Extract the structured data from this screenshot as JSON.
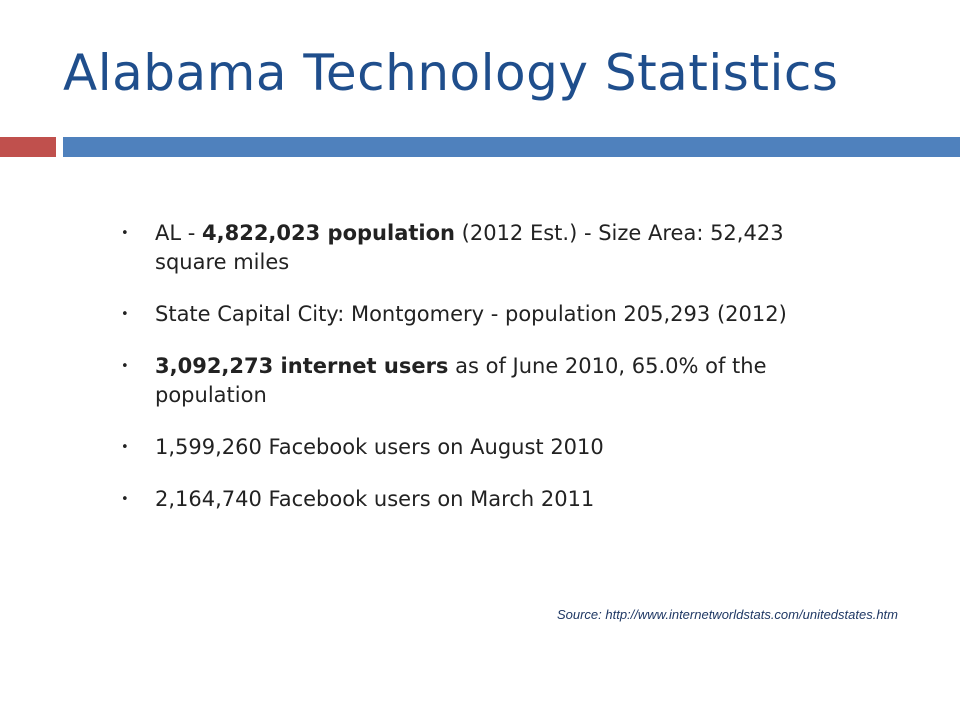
{
  "slide": {
    "title": "Alabama Technology Statistics",
    "accent_colors": {
      "red": "#c0504d",
      "blue": "#4f81bd",
      "title": "#1f4e8c"
    },
    "bullet_glyph": "•",
    "bullets": [
      {
        "pre": "AL - ",
        "bold": "4,822,023 population",
        "post": " (2012 Est.) - Size Area: 52,423 square miles"
      },
      {
        "pre": "State Capital City: Montgomery - population 205,293 (2012)",
        "bold": "",
        "post": ""
      },
      {
        "pre": "",
        "bold": "3,092,273 internet users",
        "post": " as of June 2010, 65.0% of the population"
      },
      {
        "pre": "1,599,260 Facebook users on August 2010",
        "bold": "",
        "post": ""
      },
      {
        "pre": "2,164,740 Facebook users on March 2011",
        "bold": "",
        "post": ""
      }
    ],
    "source": "Source: http://www.internetworldstats.com/unitedstates.htm"
  }
}
